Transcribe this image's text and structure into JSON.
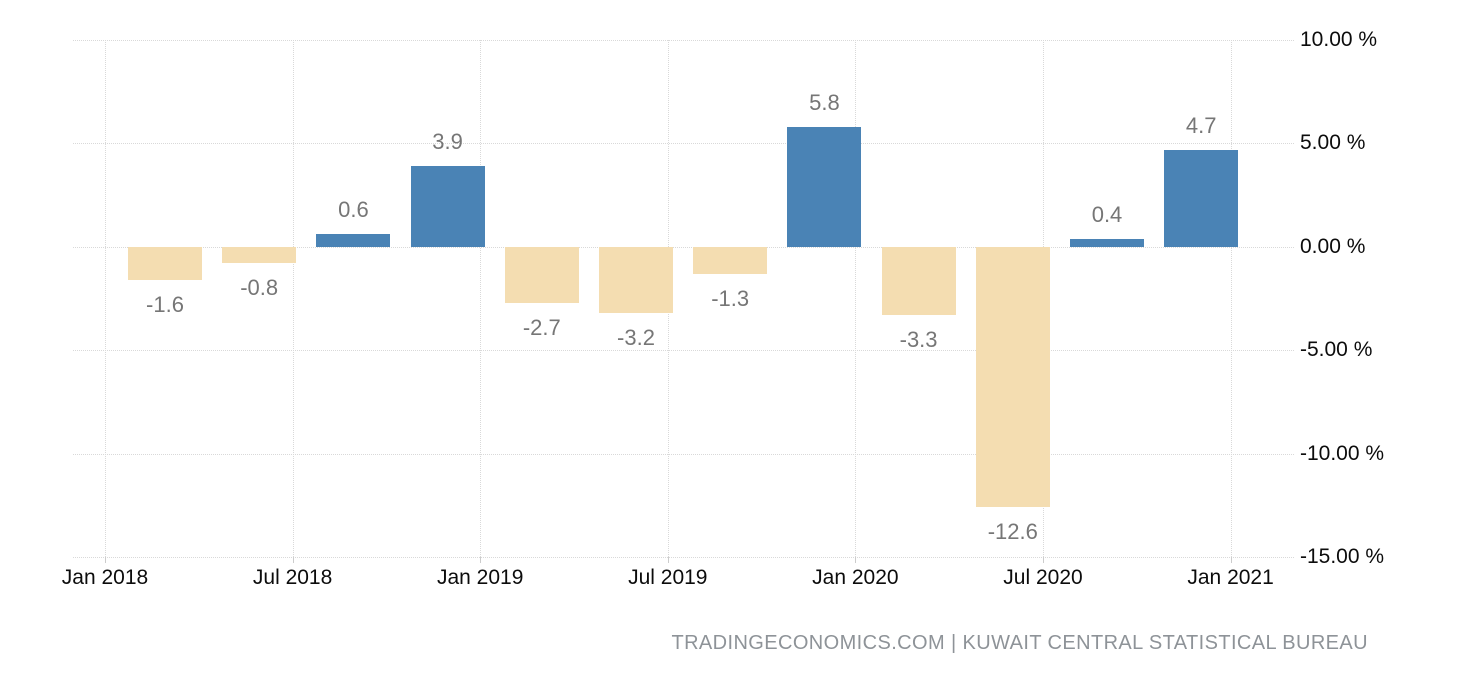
{
  "chart_data": {
    "type": "bar",
    "title": "",
    "values": [
      -1.6,
      -0.8,
      0.6,
      3.9,
      -2.7,
      -3.2,
      -1.3,
      5.8,
      -3.3,
      -12.6,
      0.4,
      4.7
    ],
    "data_labels": [
      "-1.6",
      "-0.8",
      "0.6",
      "3.9",
      "-2.7",
      "-3.2",
      "-1.3",
      "5.8",
      "-3.3",
      "-12.6",
      "0.4",
      "4.7"
    ],
    "x_tick_labels": [
      "Jan 2018",
      "Jul 2018",
      "Jan 2019",
      "Jul 2019",
      "Jan 2020",
      "Jul 2020",
      "Jan 2021"
    ],
    "y_tick_labels": [
      "10.00 %",
      "5.00 %",
      "0.00 %",
      "-5.00 %",
      "-10.00 %",
      "-15.00 %"
    ],
    "y_tick_values": [
      10,
      5,
      0,
      -5,
      -10,
      -15
    ],
    "ylim": [
      -15,
      10
    ],
    "grid": true,
    "legend_position": "none",
    "colors": {
      "positive_bar": "#4A83B5",
      "negative_bar": "#F4DDB1",
      "data_label": "#767676",
      "axis_label": "#0C0C0C",
      "gridline": "#D9D9D9",
      "attribution": "#8E9398"
    },
    "attribution": "TRADINGECONOMICS.COM | KUWAIT CENTRAL STATISTICAL BUREAU"
  }
}
